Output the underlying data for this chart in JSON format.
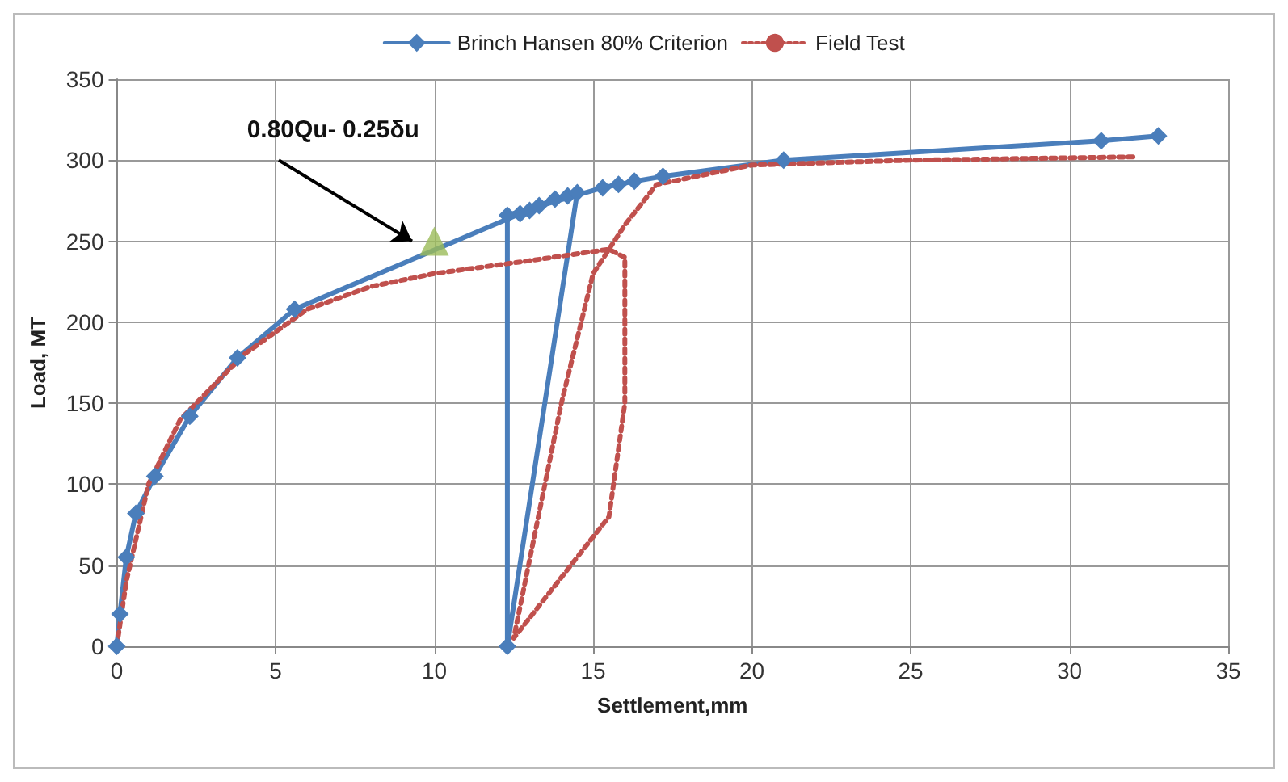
{
  "chart_data": {
    "type": "line",
    "xlabel": "Settlement,mm",
    "ylabel": "Load, MT",
    "xlim": [
      0,
      35
    ],
    "ylim": [
      0,
      350
    ],
    "xticks": [
      0,
      5,
      10,
      15,
      20,
      25,
      30,
      35
    ],
    "yticks": [
      0,
      50,
      100,
      150,
      200,
      250,
      300,
      350
    ],
    "grid": true,
    "legend": "top",
    "annotations": [
      "0.80Qu- 0.25δu"
    ],
    "series": [
      {
        "name": "Brinch Hansen 80% Criterion",
        "color": "#4a7ebb",
        "marker": "diamond",
        "line_style": "solid",
        "x": [
          0,
          0.1,
          0.3,
          0.6,
          1.2,
          2.3,
          3.8,
          5.6,
          12.7,
          13,
          13.3,
          13.8,
          14.2,
          14.5,
          12.3,
          12.3,
          15.3,
          15.8,
          16.3,
          17.2,
          21,
          31,
          32.8
        ],
        "values": [
          0,
          20,
          55,
          82,
          105,
          142,
          178,
          208,
          267,
          269,
          272,
          276,
          278,
          280,
          0,
          266,
          283,
          285,
          287,
          290,
          300,
          312,
          315
        ]
      },
      {
        "name": "Field Test",
        "color": "#c0504d",
        "marker": "none",
        "line_style": "dotted",
        "x": [
          0,
          0.3,
          1,
          2,
          4,
          6,
          8,
          10,
          13,
          15.5,
          16,
          16,
          15.5,
          14.5,
          12.5,
          14,
          15,
          16,
          17,
          20,
          25,
          32
        ],
        "values": [
          0,
          40,
          100,
          140,
          180,
          208,
          222,
          230,
          238,
          245,
          240,
          150,
          80,
          55,
          5,
          150,
          230,
          260,
          285,
          297,
          300,
          302
        ]
      },
      {
        "type": "scatter",
        "color": "#9bbb59",
        "marker": "triangle",
        "x": [
          10
        ],
        "values": [
          250
        ]
      }
    ]
  }
}
